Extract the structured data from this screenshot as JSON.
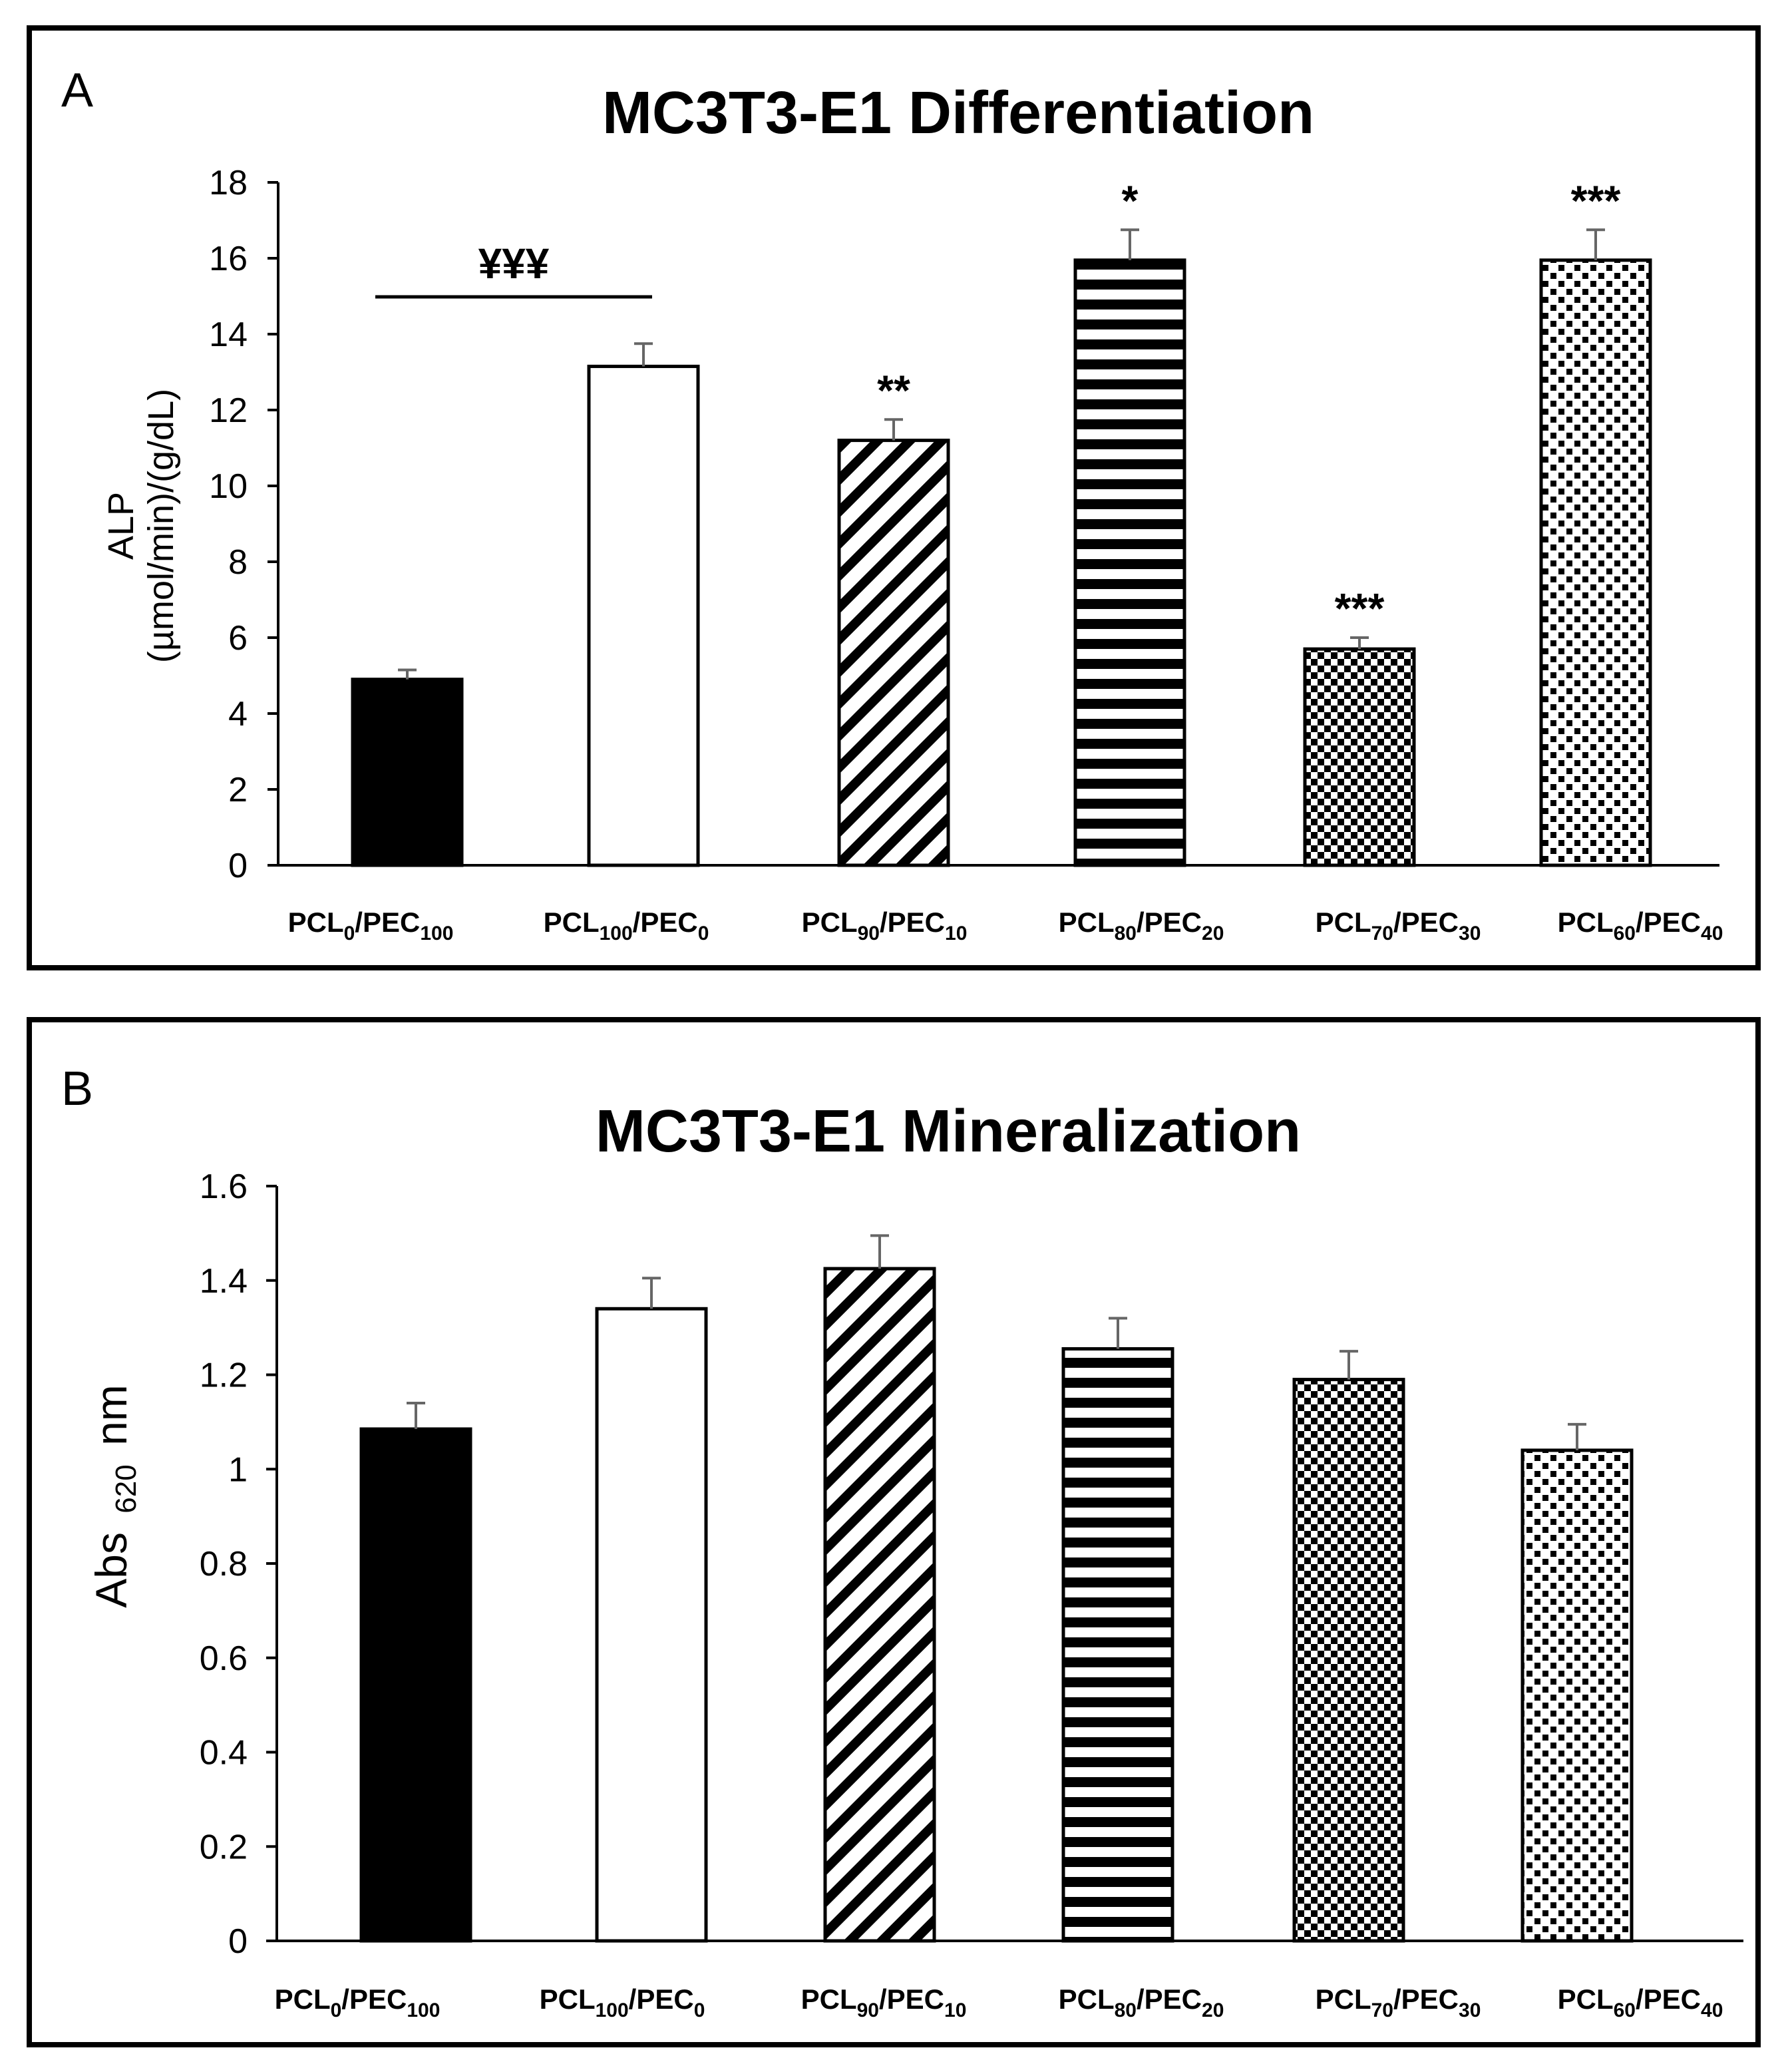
{
  "figure": {
    "panels": [
      {
        "letter": "A",
        "title": "MC3T3-E1 Differentiation",
        "ylabel_line1": "ALP",
        "ylabel_line2": "(µmol/min)/(g/dL)"
      },
      {
        "letter": "B",
        "title": "MC3T3-E1 Mineralization",
        "ylabel_main": "Abs",
        "ylabel_sub": "620",
        "ylabel_unit": "nm"
      }
    ],
    "significance_bracket": "¥¥¥"
  },
  "categories": [
    {
      "base1": "PCL",
      "sub1": "0",
      "base2": "/PEC",
      "sub2": "100"
    },
    {
      "base1": "PCL",
      "sub1": "100",
      "base2": "/PEC",
      "sub2": "0"
    },
    {
      "base1": "PCL",
      "sub1": "90",
      "base2": "/PEC",
      "sub2": "10"
    },
    {
      "base1": "PCL",
      "sub1": "80",
      "base2": "/PEC",
      "sub2": "20"
    },
    {
      "base1": "PCL",
      "sub1": "70",
      "base2": "/PEC",
      "sub2": "30"
    },
    {
      "base1": "PCL",
      "sub1": "60",
      "base2": "/PEC",
      "sub2": "40"
    }
  ],
  "chart_data": [
    {
      "type": "bar",
      "title": "MC3T3-E1 Differentiation",
      "ylabel": "ALP (µmol/min)/(g/dL)",
      "xlabel": "",
      "categories": [
        "PCL0/PEC100",
        "PCL100/PEC0",
        "PCL90/PEC10",
        "PCL80/PEC20",
        "PCL70/PEC30",
        "PCL60/PEC40"
      ],
      "values": [
        4.9,
        13.15,
        11.2,
        15.95,
        5.7,
        15.95
      ],
      "errors": [
        0.25,
        0.6,
        0.55,
        0.8,
        0.3,
        0.8
      ],
      "annotations": [
        "",
        "",
        "**",
        "*",
        "***",
        "***"
      ],
      "ylim": [
        0,
        18
      ],
      "yticks": [
        "0",
        "2",
        "4",
        "6",
        "8",
        "10",
        "12",
        "14",
        "16",
        "18"
      ],
      "ytick_values": [
        0,
        2,
        4,
        6,
        8,
        10,
        12,
        14,
        16,
        18
      ],
      "patterns": [
        "solid",
        "white",
        "diagonal",
        "horizontal",
        "checker",
        "dots"
      ]
    },
    {
      "type": "bar",
      "title": "MC3T3-E1 Mineralization",
      "ylabel": "Abs 620 nm",
      "xlabel": "",
      "categories": [
        "PCL0/PEC100",
        "PCL100/PEC0",
        "PCL90/PEC10",
        "PCL80/PEC20",
        "PCL70/PEC30",
        "PCL60/PEC40"
      ],
      "values": [
        1.085,
        1.34,
        1.425,
        1.255,
        1.19,
        1.04
      ],
      "errors": [
        0.055,
        0.065,
        0.07,
        0.065,
        0.06,
        0.055
      ],
      "annotations": [
        "",
        "",
        "",
        "",
        "",
        ""
      ],
      "ylim": [
        0,
        1.6
      ],
      "yticks": [
        "0",
        "0.2",
        "0.4",
        "0.6",
        "0.8",
        "1",
        "1.2",
        "1.4",
        "1.6"
      ],
      "ytick_values": [
        0,
        0.2,
        0.4,
        0.6,
        0.8,
        1,
        1.2,
        1.4,
        1.6
      ],
      "patterns": [
        "solid",
        "white",
        "diagonal",
        "horizontal",
        "checker",
        "dots"
      ]
    }
  ]
}
